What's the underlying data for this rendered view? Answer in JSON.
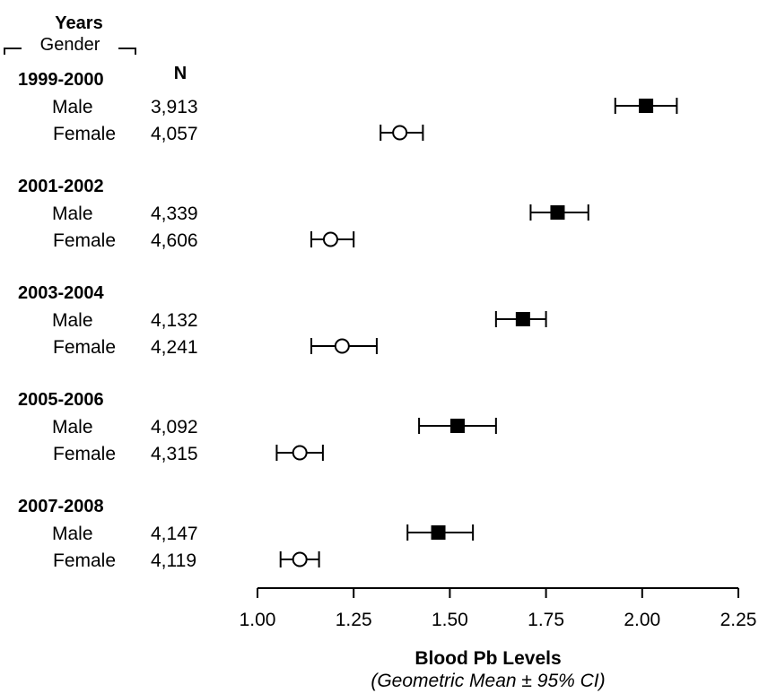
{
  "header": {
    "years_label": "Years",
    "gender_label": "Gender",
    "n_label": "N"
  },
  "chart_data": {
    "type": "forest",
    "xlabel": "Blood Pb Levels",
    "xlabel_sub": "(Geometric Mean ± 95% CI)",
    "xlim": [
      1.0,
      2.25
    ],
    "xticks": [
      1.0,
      1.25,
      1.5,
      1.75,
      2.0,
      2.25
    ],
    "xtick_labels": [
      "1.00",
      "1.25",
      "1.50",
      "1.75",
      "2.00",
      "2.25"
    ],
    "series_style": {
      "Male": {
        "marker": "filled-square",
        "color": "#000000"
      },
      "Female": {
        "marker": "open-circle",
        "color": "#000000"
      }
    },
    "groups": [
      {
        "years": "1999-2000",
        "rows": [
          {
            "gender": "Male",
            "n": "3,913",
            "mean": 2.01,
            "ci": [
              1.93,
              2.09
            ]
          },
          {
            "gender": "Female",
            "n": "4,057",
            "mean": 1.37,
            "ci": [
              1.32,
              1.43
            ]
          }
        ]
      },
      {
        "years": "2001-2002",
        "rows": [
          {
            "gender": "Male",
            "n": "4,339",
            "mean": 1.78,
            "ci": [
              1.71,
              1.86
            ]
          },
          {
            "gender": "Female",
            "n": "4,606",
            "mean": 1.19,
            "ci": [
              1.14,
              1.25
            ]
          }
        ]
      },
      {
        "years": "2003-2004",
        "rows": [
          {
            "gender": "Male",
            "n": "4,132",
            "mean": 1.69,
            "ci": [
              1.62,
              1.75
            ]
          },
          {
            "gender": "Female",
            "n": "4,241",
            "mean": 1.22,
            "ci": [
              1.14,
              1.31
            ]
          }
        ]
      },
      {
        "years": "2005-2006",
        "rows": [
          {
            "gender": "Male",
            "n": "4,092",
            "mean": 1.52,
            "ci": [
              1.42,
              1.62
            ]
          },
          {
            "gender": "Female",
            "n": "4,315",
            "mean": 1.11,
            "ci": [
              1.05,
              1.17
            ]
          }
        ]
      },
      {
        "years": "2007-2008",
        "rows": [
          {
            "gender": "Male",
            "n": "4,147",
            "mean": 1.47,
            "ci": [
              1.39,
              1.56
            ]
          },
          {
            "gender": "Female",
            "n": "4,119",
            "mean": 1.11,
            "ci": [
              1.06,
              1.16
            ]
          }
        ]
      }
    ]
  }
}
